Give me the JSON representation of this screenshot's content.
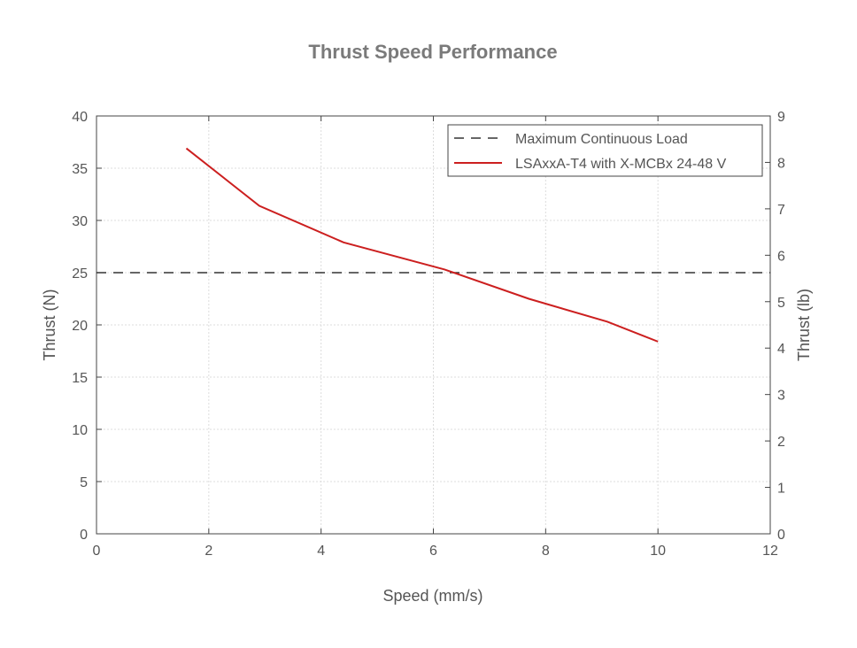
{
  "chart_data": {
    "type": "line",
    "title": "Thrust Speed Performance",
    "xlabel": "Speed (mm/s)",
    "ylabel": "Thrust (N)",
    "ylabel_right": "Thrust (lb)",
    "xlim": [
      0,
      12
    ],
    "ylim": [
      0,
      40
    ],
    "ylim_right": [
      0,
      9
    ],
    "xticks": [
      "0",
      "2",
      "4",
      "6",
      "8",
      "10",
      "12"
    ],
    "yticks": [
      "0",
      "5",
      "10",
      "15",
      "20",
      "25",
      "30",
      "35",
      "40"
    ],
    "yticks_right": [
      "0",
      "1",
      "2",
      "3",
      "4",
      "5",
      "6",
      "7",
      "8",
      "9"
    ],
    "grid": true,
    "legend_position": "top-right",
    "series": [
      {
        "name": "Maximum Continuous Load",
        "style": "dashed",
        "color": "#333333",
        "x": [
          0,
          12
        ],
        "y": [
          25,
          25
        ]
      },
      {
        "name": "LSAxxA-T4 with X-MCBx 24-48 V",
        "style": "solid",
        "color": "#cc1f1f",
        "x": [
          1.6,
          2.9,
          4.4,
          6.2,
          7.7,
          9.1,
          10.0
        ],
        "y": [
          36.9,
          31.4,
          27.9,
          25.3,
          22.5,
          20.3,
          18.4
        ]
      }
    ]
  }
}
